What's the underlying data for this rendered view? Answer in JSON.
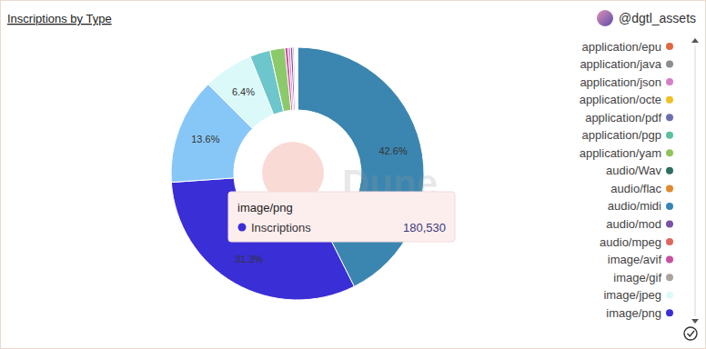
{
  "chart_data": {
    "type": "pie",
    "title": "Inscriptions by Type",
    "author": "@dgtl_assets",
    "watermark": "Dune",
    "categories": [
      null,
      "image/png",
      null,
      "image/jpeg",
      null,
      null,
      "image/avif",
      "application/json",
      "audio/mod",
      "image/gif",
      "application/octe",
      "application/pdf",
      "audio/mpeg",
      "application/epu",
      "application/java",
      "application/pgp",
      "application/yam",
      "audio/Wav",
      "audio/flac",
      "audio/midi"
    ],
    "values": [
      42.6,
      31.3,
      13.6,
      6.4,
      2.6,
      1.9,
      0.4,
      0.3,
      0.3,
      0.2,
      0.1,
      0.05,
      0.05,
      0.03,
      0.03,
      0.03,
      0.03,
      0.02,
      0.03,
      0.03
    ],
    "value_labels": [
      "42.6%",
      "31.3%",
      "13.6%",
      "6.4%",
      null,
      null,
      null,
      null,
      null,
      null,
      null,
      null,
      null,
      null,
      null,
      null,
      null,
      null,
      null,
      null
    ],
    "colors": [
      "#3b86b0",
      "#3a2ed6",
      "#87c7f7",
      "#dcf9fa",
      "#6cc6cc",
      "#8cc96a",
      "#c9509f",
      "#d67fc6",
      "#7b52a8",
      "#a9a59d",
      "#f0c024",
      "#6b6fae",
      "#e0675e",
      "#e0683e",
      "#8e8e8e",
      "#5cbf9f",
      "#90c45a",
      "#2e6e5f",
      "#e08a2c",
      "#3784b6"
    ],
    "data_labels": true,
    "legend": "right",
    "tooltip": {
      "category": "image/png",
      "series": "Inscriptions",
      "value": 180530,
      "value_label": "180,530"
    }
  }
}
